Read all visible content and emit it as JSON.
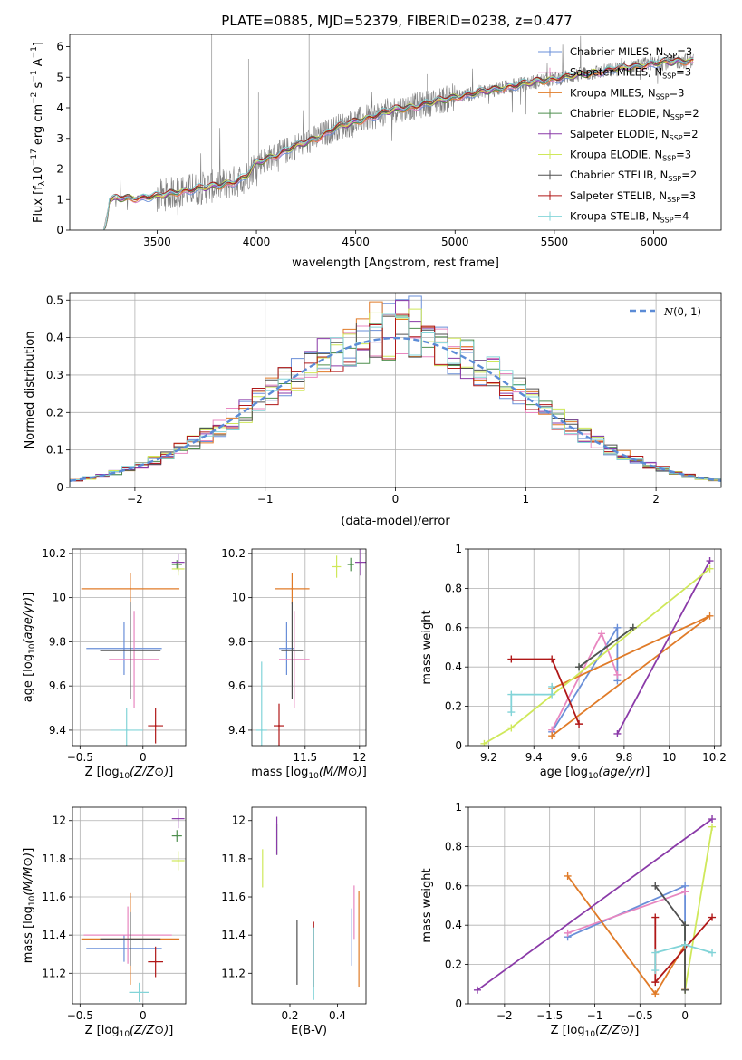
{
  "figure": {
    "title": "PLATE=0885, MJD=52379, FIBERID=0238, z=0.477"
  },
  "colors": {
    "Chabrier MILES": "#6a8fd8",
    "Salpeter MILES": "#e887c0",
    "Kroupa MILES": "#e07b28",
    "Chabrier ELODIE": "#4f8f4f",
    "Salpeter ELODIE": "#8a3aa8",
    "Kroupa ELODIE": "#cfe85a",
    "Chabrier STELIB": "#505050",
    "Salpeter STELIB": "#b01818",
    "Kroupa STELIB": "#82d4d8",
    "data": "#7f7f7f"
  },
  "models": [
    {
      "name": "Chabrier MILES",
      "nssp": 3
    },
    {
      "name": "Salpeter MILES",
      "nssp": 3
    },
    {
      "name": "Kroupa MILES",
      "nssp": 3
    },
    {
      "name": "Chabrier ELODIE",
      "nssp": 2
    },
    {
      "name": "Salpeter ELODIE",
      "nssp": 2
    },
    {
      "name": "Kroupa ELODIE",
      "nssp": 3
    },
    {
      "name": "Chabrier STELIB",
      "nssp": 2
    },
    {
      "name": "Salpeter STELIB",
      "nssp": 3
    },
    {
      "name": "Kroupa STELIB",
      "nssp": 4
    }
  ],
  "chart_data": [
    {
      "id": "spectrum",
      "type": "line",
      "xlabel": "wavelength [Angstrom, rest frame]",
      "ylabel": "Flux [f_λ 10^-17 erg cm^-2 s^-1 A^-1]",
      "xlim": [
        3060,
        6340
      ],
      "ylim": [
        0,
        6.4
      ],
      "xticks": [
        3500,
        4000,
        4500,
        5000,
        5500,
        6000
      ],
      "yticks": [
        0,
        1,
        2,
        3,
        4,
        5,
        6
      ],
      "legend": "top-right",
      "data_start": 3230,
      "continuum": {
        "x": [
          3230,
          3260,
          3300,
          3400,
          3500,
          3600,
          3700,
          3800,
          3900,
          3950,
          4000,
          4100,
          4200,
          4300,
          4400,
          4500,
          4600,
          4700,
          4800,
          4900,
          5000,
          5200,
          5400,
          5600,
          5800,
          6000,
          6200
        ],
        "y": [
          0.0,
          0.95,
          1.05,
          1.05,
          1.1,
          1.25,
          1.35,
          1.45,
          1.6,
          1.75,
          2.2,
          2.45,
          2.75,
          3.0,
          3.35,
          3.55,
          3.75,
          3.95,
          4.05,
          4.2,
          4.35,
          4.6,
          4.85,
          5.05,
          5.25,
          5.45,
          5.55
        ]
      }
    },
    {
      "id": "residuals",
      "type": "bar",
      "xlabel": "(data-model)/error",
      "ylabel": "Normed distribution",
      "xlim": [
        -2.5,
        2.5
      ],
      "ylim": [
        0,
        0.52
      ],
      "xticks": [
        -2,
        -1,
        0,
        1,
        2
      ],
      "yticks": [
        0.0,
        0.1,
        0.2,
        0.3,
        0.4,
        0.5
      ],
      "grid": true,
      "legend": "top-right",
      "gaussian_label": "N(0,1)",
      "bin_width": 0.1,
      "bin_start": -2.5
    },
    {
      "id": "age-vs-Z",
      "type": "scatter",
      "xlabel": "Z [log10(Z/Z_sun)]",
      "ylabel": "age  [log10(age/yr)]",
      "xlim": [
        -0.56,
        0.34
      ],
      "ylim": [
        9.33,
        10.22
      ],
      "xticks": [
        -0.5,
        0.0
      ],
      "yticks": [
        9.4,
        9.6,
        9.8,
        10.0,
        10.2
      ],
      "grid": true,
      "points": [
        {
          "model": "Chabrier MILES",
          "x": -0.15,
          "y": 9.77,
          "xerr": 0.3,
          "yerr": 0.12
        },
        {
          "model": "Salpeter MILES",
          "x": -0.07,
          "y": 9.72,
          "xerr": 0.2,
          "yerr": 0.22
        },
        {
          "model": "Kroupa MILES",
          "x": -0.1,
          "y": 10.04,
          "xerr": 0.39,
          "yerr": 0.07
        },
        {
          "model": "Chabrier ELODIE",
          "x": 0.27,
          "y": 10.15,
          "xerr": 0.04,
          "yerr": 0.02
        },
        {
          "model": "Salpeter ELODIE",
          "x": 0.28,
          "y": 10.16,
          "xerr": 0.05,
          "yerr": 0.04
        },
        {
          "model": "Kroupa ELODIE",
          "x": 0.28,
          "y": 10.13,
          "xerr": 0.05,
          "yerr": 0.03
        },
        {
          "model": "Chabrier STELIB",
          "x": -0.1,
          "y": 9.76,
          "xerr": 0.24,
          "yerr": 0.22
        },
        {
          "model": "Salpeter STELIB",
          "x": 0.1,
          "y": 9.42,
          "xerr": 0.06,
          "yerr": 0.08
        },
        {
          "model": "Kroupa STELIB",
          "x": -0.13,
          "y": 9.4,
          "xerr": 0.13,
          "yerr": 0.1
        }
      ]
    },
    {
      "id": "age-vs-mass",
      "type": "scatter",
      "xlabel": "mass [log10(M/M_sun)]",
      "ylabel": "",
      "xlim": [
        11.01,
        12.06
      ],
      "ylim": [
        9.33,
        10.22
      ],
      "xticks": [
        11.5,
        12.0
      ],
      "yticks": [
        9.4,
        9.6,
        9.8,
        10.0,
        10.2
      ],
      "grid": true,
      "points": [
        {
          "model": "Chabrier MILES",
          "x": 11.33,
          "y": 9.77,
          "xerr": 0.07,
          "yerr": 0.12
        },
        {
          "model": "Salpeter MILES",
          "x": 11.4,
          "y": 9.72,
          "xerr": 0.14,
          "yerr": 0.22
        },
        {
          "model": "Kroupa MILES",
          "x": 11.38,
          "y": 10.04,
          "xerr": 0.16,
          "yerr": 0.07
        },
        {
          "model": "Chabrier ELODIE",
          "x": 11.92,
          "y": 10.15,
          "xerr": 0.03,
          "yerr": 0.03
        },
        {
          "model": "Salpeter ELODIE",
          "x": 12.01,
          "y": 10.16,
          "xerr": 0.05,
          "yerr": 0.06
        },
        {
          "model": "Kroupa ELODIE",
          "x": 11.79,
          "y": 10.14,
          "xerr": 0.04,
          "yerr": 0.05
        },
        {
          "model": "Chabrier STELIB",
          "x": 11.38,
          "y": 9.76,
          "xerr": 0.1,
          "yerr": 0.22
        },
        {
          "model": "Salpeter STELIB",
          "x": 11.26,
          "y": 9.42,
          "xerr": 0.05,
          "yerr": 0.1
        },
        {
          "model": "Kroupa STELIB",
          "x": 11.1,
          "y": 9.4,
          "xerr": 0.05,
          "yerr": 0.31
        }
      ]
    },
    {
      "id": "mass-weight-vs-age",
      "type": "line",
      "xlabel": "age  [log10(age/yr)]",
      "ylabel": "mass weight",
      "xlim": [
        9.11,
        10.23
      ],
      "ylim": [
        0,
        1.0
      ],
      "xticks": [
        9.2,
        9.4,
        9.6,
        9.8,
        10.0,
        10.2
      ],
      "yticks": [
        0.0,
        0.2,
        0.4,
        0.6,
        0.8,
        1.0
      ],
      "grid": true,
      "series": [
        {
          "model": "Chabrier MILES",
          "x": [
            9.48,
            9.77,
            9.77
          ],
          "y": [
            0.07,
            0.6,
            0.33
          ]
        },
        {
          "model": "Salpeter MILES",
          "x": [
            9.48,
            9.7,
            9.77
          ],
          "y": [
            0.08,
            0.57,
            0.36
          ]
        },
        {
          "model": "Kroupa MILES",
          "x": [
            9.48,
            10.18,
            9.48
          ],
          "y": [
            0.05,
            0.66,
            0.29
          ]
        },
        {
          "model": "Chabrier ELODIE",
          "x": [
            9.6,
            9.84
          ],
          "y": [
            0.4,
            0.6
          ]
        },
        {
          "model": "Salpeter ELODIE",
          "x": [
            9.77,
            10.18
          ],
          "y": [
            0.06,
            0.94
          ]
        },
        {
          "model": "Kroupa ELODIE",
          "x": [
            9.18,
            9.3,
            10.18
          ],
          "y": [
            0.01,
            0.09,
            0.9
          ]
        },
        {
          "model": "Chabrier STELIB",
          "x": [
            9.6,
            9.84
          ],
          "y": [
            0.4,
            0.6
          ]
        },
        {
          "model": "Salpeter STELIB",
          "x": [
            9.3,
            9.48,
            9.6
          ],
          "y": [
            0.44,
            0.44,
            0.11
          ]
        },
        {
          "model": "Kroupa STELIB",
          "x": [
            9.3,
            9.3,
            9.48,
            9.48
          ],
          "y": [
            0.17,
            0.26,
            0.26,
            0.3
          ]
        }
      ]
    },
    {
      "id": "mass-vs-Z",
      "type": "scatter",
      "xlabel": "Z [log10(Z/Z_sun)]",
      "ylabel": "mass [log10(M/M_sun)]",
      "xlim": [
        -0.56,
        0.34
      ],
      "ylim": [
        11.04,
        12.07
      ],
      "xticks": [
        -0.5,
        0.0
      ],
      "yticks": [
        11.2,
        11.4,
        11.6,
        11.8,
        12.0
      ],
      "grid": true,
      "points": [
        {
          "model": "Chabrier MILES",
          "x": -0.15,
          "y": 11.33,
          "xerr": 0.3,
          "yerr": 0.07
        },
        {
          "model": "Salpeter MILES",
          "x": -0.12,
          "y": 11.4,
          "xerr": 0.35,
          "yerr": 0.15
        },
        {
          "model": "Kroupa MILES",
          "x": -0.1,
          "y": 11.38,
          "xerr": 0.39,
          "yerr": 0.24
        },
        {
          "model": "Chabrier ELODIE",
          "x": 0.27,
          "y": 11.92,
          "xerr": 0.04,
          "yerr": 0.03
        },
        {
          "model": "Salpeter ELODIE",
          "x": 0.28,
          "y": 12.01,
          "xerr": 0.05,
          "yerr": 0.05
        },
        {
          "model": "Kroupa ELODIE",
          "x": 0.28,
          "y": 11.79,
          "xerr": 0.05,
          "yerr": 0.05
        },
        {
          "model": "Chabrier STELIB",
          "x": -0.1,
          "y": 11.38,
          "xerr": 0.24,
          "yerr": 0.14
        },
        {
          "model": "Salpeter STELIB",
          "x": 0.1,
          "y": 11.26,
          "xerr": 0.06,
          "yerr": 0.08
        },
        {
          "model": "Kroupa STELIB",
          "x": -0.03,
          "y": 11.1,
          "xerr": 0.08,
          "yerr": 0.05
        }
      ]
    },
    {
      "id": "mass-vs-EBV",
      "type": "scatter",
      "xlabel": "E(B-V)",
      "ylabel": "",
      "xlim": [
        0.04,
        0.52
      ],
      "ylim": [
        11.04,
        12.07
      ],
      "xticks": [
        0.2,
        0.4
      ],
      "yticks": [
        11.2,
        11.4,
        11.6,
        11.8,
        12.0
      ],
      "grid": false,
      "points": [
        {
          "model": "Chabrier MILES",
          "x": 0.46,
          "y": 11.39,
          "xerr": 0.0,
          "yerr": 0.15
        },
        {
          "model": "Salpeter MILES",
          "x": 0.47,
          "y": 11.52,
          "xerr": 0.0,
          "yerr": 0.14
        },
        {
          "model": "Kroupa MILES",
          "x": 0.49,
          "y": 11.38,
          "xerr": 0.0,
          "yerr": 0.25
        },
        {
          "model": "Chabrier ELODIE",
          "x": 0.145,
          "y": 11.9,
          "xerr": 0.0,
          "yerr": 0.08
        },
        {
          "model": "Salpeter ELODIE",
          "x": 0.145,
          "y": 11.92,
          "xerr": 0.0,
          "yerr": 0.1
        },
        {
          "model": "Kroupa ELODIE",
          "x": 0.085,
          "y": 11.75,
          "xerr": 0.0,
          "yerr": 0.1
        },
        {
          "model": "Chabrier STELIB",
          "x": 0.23,
          "y": 11.31,
          "xerr": 0.0,
          "yerr": 0.17
        },
        {
          "model": "Salpeter STELIB",
          "x": 0.3,
          "y": 11.3,
          "xerr": 0.0,
          "yerr": 0.17
        },
        {
          "model": "Kroupa STELIB",
          "x": 0.3,
          "y": 11.25,
          "xerr": 0.0,
          "yerr": 0.19
        }
      ]
    },
    {
      "id": "mass-weight-vs-Z",
      "type": "line",
      "xlabel": "Z [log10(Z/Z_sun)]",
      "ylabel": "mass weight",
      "xlim": [
        -2.4,
        0.4
      ],
      "ylim": [
        0,
        1.0
      ],
      "xticks": [
        -2.0,
        -1.5,
        -1.0,
        -0.5,
        0.0
      ],
      "yticks": [
        0.0,
        0.2,
        0.4,
        0.6,
        0.8,
        1.0
      ],
      "grid": true,
      "series": [
        {
          "model": "Chabrier MILES",
          "x": [
            -1.3,
            0.0,
            0.0
          ],
          "y": [
            0.34,
            0.6,
            0.08
          ]
        },
        {
          "model": "Salpeter MILES",
          "x": [
            -1.3,
            0.0
          ],
          "y": [
            0.36,
            0.57
          ]
        },
        {
          "model": "Kroupa MILES",
          "x": [
            -1.3,
            -0.33,
            0.0,
            0.0
          ],
          "y": [
            0.65,
            0.05,
            0.3,
            0.08
          ]
        },
        {
          "model": "Chabrier ELODIE",
          "x": [
            0.0,
            0.0
          ],
          "y": [
            0.07,
            0.4
          ]
        },
        {
          "model": "Salpeter ELODIE",
          "x": [
            -2.3,
            0.3
          ],
          "y": [
            0.07,
            0.94
          ]
        },
        {
          "model": "Kroupa ELODIE",
          "x": [
            0.0,
            0.3
          ],
          "y": [
            0.07,
            0.9
          ]
        },
        {
          "model": "Chabrier STELIB",
          "x": [
            -0.33,
            0.0,
            0.0
          ],
          "y": [
            0.6,
            0.4,
            0.07
          ]
        },
        {
          "model": "Salpeter STELIB",
          "x": [
            -0.33,
            -0.33,
            0.3
          ],
          "y": [
            0.44,
            0.11,
            0.44
          ]
        },
        {
          "model": "Kroupa STELIB",
          "x": [
            -0.33,
            -0.33,
            0.0,
            0.3
          ],
          "y": [
            0.17,
            0.26,
            0.3,
            0.26
          ]
        }
      ]
    }
  ]
}
